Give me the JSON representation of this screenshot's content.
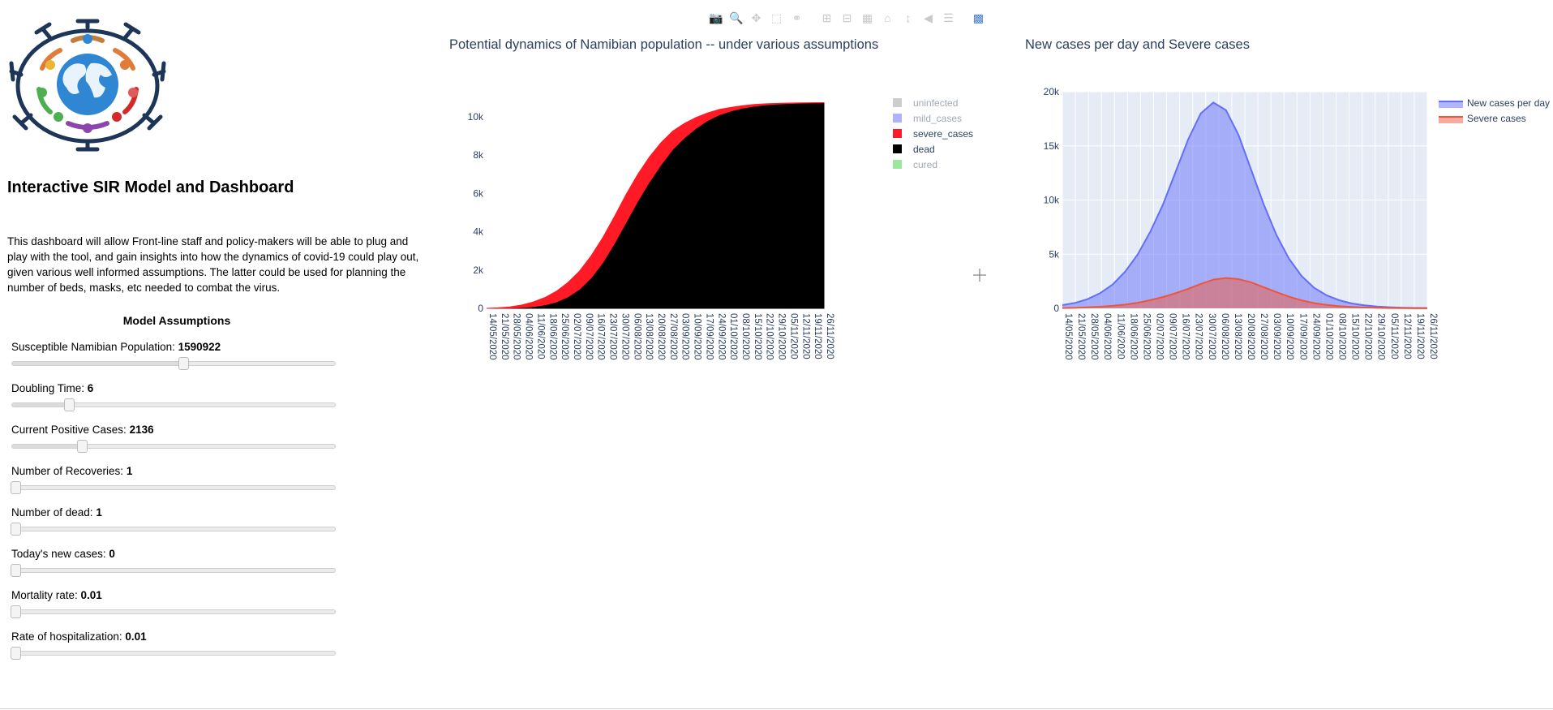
{
  "app": {
    "title": "Interactive SIR Model and Dashboard",
    "description": "This dashboard will allow Front-line staff and policy-makers will be able to plug and play with the tool, and gain insights into how the dynamics of covid-19 could play out, given various well informed assumptions. The latter could be used for planning the number of beds, masks, etc needed to combat the virus."
  },
  "assumptions": {
    "title": "Model Assumptions",
    "sliders": [
      {
        "label": "Susceptible Namibian Population:",
        "value": "1590922",
        "fraction": 0.53
      },
      {
        "label": "Doubling Time:",
        "value": "6",
        "fraction": 0.175
      },
      {
        "label": "Current Positive Cases:",
        "value": "2136",
        "fraction": 0.215
      },
      {
        "label": "Number of Recoveries:",
        "value": "1",
        "fraction": 0.0
      },
      {
        "label": "Number of dead:",
        "value": "1",
        "fraction": 0.0
      },
      {
        "label": "Today's new cases:",
        "value": "0",
        "fraction": 0.0
      },
      {
        "label": "Mortality rate:",
        "value": "0.01",
        "fraction": 0.0
      },
      {
        "label": "Rate of hospitalization:",
        "value": "0.01",
        "fraction": 0.0
      }
    ]
  },
  "toolbar": [
    "camera-icon",
    "zoom-icon",
    "pan-icon",
    "box-select-icon",
    "lasso-icon",
    "zoom-in-icon",
    "zoom-out-icon",
    "autoscale-icon",
    "home-icon",
    "spike-lines-icon",
    "hover-closest-icon",
    "hover-compare-icon",
    "plotly-logo-icon"
  ],
  "chart_data": [
    {
      "type": "area",
      "title": "Potential dynamics of Namibian population -- under various assumptions",
      "stacked": true,
      "x_start": "14/05/2020",
      "x_tick_labels": [
        "14/05/2020",
        "21/05/2020",
        "28/05/2020",
        "04/06/2020",
        "11/06/2020",
        "18/06/2020",
        "25/06/2020",
        "02/07/2020",
        "09/07/2020",
        "16/07/2020",
        "23/07/2020",
        "30/07/2020",
        "06/08/2020",
        "13/08/2020",
        "20/08/2020",
        "27/08/2020",
        "03/09/2020",
        "10/09/2020",
        "17/09/2020",
        "24/09/2020",
        "01/10/2020",
        "08/10/2020",
        "15/10/2020",
        "22/10/2020",
        "29/10/2020",
        "05/11/2020",
        "12/11/2020",
        "19/11/2020",
        "26/11/2020"
      ],
      "y_ticks": [
        {
          "value": 0,
          "label": "0"
        },
        {
          "value": 2000,
          "label": "2k"
        },
        {
          "value": 4000,
          "label": "4k"
        },
        {
          "value": 6000,
          "label": "6k"
        },
        {
          "value": 8000,
          "label": "8k"
        },
        {
          "value": 10000,
          "label": "10k"
        }
      ],
      "ylim": [
        0,
        10800
      ],
      "series": [
        {
          "name": "dead",
          "color": "#000000",
          "values": [
            0,
            5,
            15,
            40,
            90,
            180,
            330,
            600,
            1000,
            1600,
            2400,
            3400,
            4500,
            5600,
            6600,
            7500,
            8300,
            8900,
            9400,
            9800,
            10100,
            10300,
            10450,
            10550,
            10620,
            10660,
            10690,
            10710,
            10720,
            10730
          ]
        },
        {
          "name": "severe_cases",
          "color": "#ff1a26",
          "values": [
            0,
            20,
            60,
            130,
            240,
            380,
            560,
            750,
            950,
            1150,
            1300,
            1400,
            1450,
            1400,
            1300,
            1150,
            950,
            750,
            560,
            400,
            280,
            190,
            130,
            90,
            60,
            40,
            25,
            15,
            10,
            5
          ]
        }
      ],
      "legend": {
        "placement": "right",
        "entries": [
          {
            "name": "uninfected",
            "color": "#c8c8c8",
            "visible": false
          },
          {
            "name": "mild_cases",
            "color": "#a8a8ff",
            "visible": false
          },
          {
            "name": "severe_cases",
            "color": "#ff1a26",
            "visible": true
          },
          {
            "name": "dead",
            "color": "#000000",
            "visible": true
          },
          {
            "name": "cured",
            "color": "#90e490",
            "visible": false
          }
        ]
      }
    },
    {
      "type": "area",
      "title": "New cases per day and Severe cases",
      "x_tick_labels": [
        "14/05/2020",
        "21/05/2020",
        "28/05/2020",
        "04/06/2020",
        "11/06/2020",
        "18/06/2020",
        "25/06/2020",
        "02/07/2020",
        "09/07/2020",
        "16/07/2020",
        "23/07/2020",
        "30/07/2020",
        "06/08/2020",
        "13/08/2020",
        "20/08/2020",
        "27/08/2020",
        "03/09/2020",
        "10/09/2020",
        "17/09/2020",
        "24/09/2020",
        "01/10/2020",
        "08/10/2020",
        "15/10/2020",
        "22/10/2020",
        "29/10/2020",
        "05/11/2020",
        "12/11/2020",
        "19/11/2020",
        "26/11/2020"
      ],
      "y_ticks": [
        {
          "value": 0,
          "label": "0"
        },
        {
          "value": 5000,
          "label": "5k"
        },
        {
          "value": 10000,
          "label": "10k"
        },
        {
          "value": 15000,
          "label": "15k"
        },
        {
          "value": 20000,
          "label": "20k"
        }
      ],
      "ylim": [
        0,
        20000
      ],
      "grid": true,
      "series": [
        {
          "name": "New cases per day",
          "color": "#636efa",
          "values": [
            300,
            500,
            850,
            1400,
            2200,
            3400,
            5000,
            7100,
            9600,
            12600,
            15600,
            18000,
            19000,
            18300,
            16000,
            12800,
            9600,
            6800,
            4600,
            3000,
            1900,
            1200,
            750,
            450,
            280,
            170,
            100,
            60,
            40,
            25
          ]
        },
        {
          "name": "Severe cases",
          "color": "#ef553b",
          "values": [
            30,
            50,
            90,
            150,
            230,
            350,
            520,
            760,
            1050,
            1400,
            1800,
            2250,
            2650,
            2800,
            2700,
            2400,
            1950,
            1500,
            1080,
            740,
            490,
            320,
            200,
            130,
            80,
            50,
            30,
            20,
            12,
            8
          ]
        }
      ],
      "legend": {
        "placement": "top-right",
        "entries": [
          {
            "name": "New cases per day",
            "color": "#636efa"
          },
          {
            "name": "Severe cases",
            "color": "#ef553b"
          }
        ]
      }
    }
  ]
}
